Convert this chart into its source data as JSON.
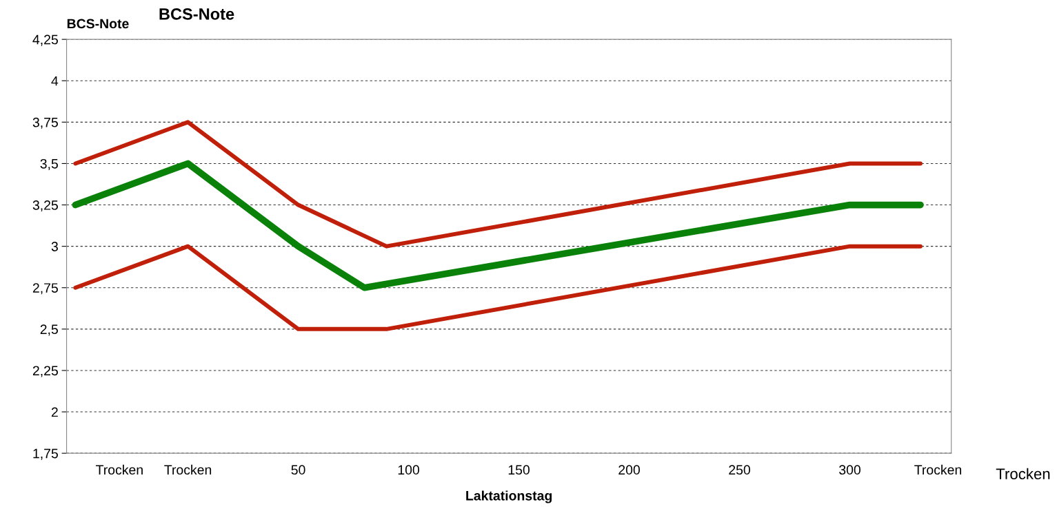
{
  "chart_data": {
    "type": "line",
    "title": "BCS-Note",
    "ylabel": "BCS-Note",
    "xlabel": "Laktationstag",
    "annotations": [
      "Trocken"
    ],
    "series": [
      {
        "color": "#c0200a",
        "x": [
          -51,
          0,
          50,
          90,
          300,
          332
        ],
        "values": [
          3.5,
          3.75,
          3.25,
          3.0,
          3.5,
          3.5
        ]
      },
      {
        "color": "#0a820a",
        "x": [
          -51,
          0,
          50,
          80,
          300,
          332
        ],
        "values": [
          3.25,
          3.5,
          3.0,
          2.75,
          3.25,
          3.25
        ]
      },
      {
        "color": "#c0200a",
        "x": [
          -51,
          0,
          50,
          90,
          300,
          332
        ],
        "values": [
          2.75,
          3.0,
          2.5,
          2.5,
          3.0,
          3.0
        ]
      }
    ],
    "xlim": [
      -55,
      346
    ],
    "xticks": [
      {
        "value": -31,
        "label": "Trocken"
      },
      {
        "value": 0,
        "label": "Trocken"
      },
      50,
      100,
      150,
      200,
      250,
      300,
      {
        "value": 340,
        "label": "Trocken"
      }
    ],
    "ylim": [
      1.75,
      4.25
    ],
    "yticks": [
      {
        "value": 1.75,
        "label": "1,75"
      },
      2,
      {
        "value": 2.25,
        "label": "2,25"
      },
      {
        "value": 2.5,
        "label": "2,5"
      },
      {
        "value": 2.75,
        "label": "2,75"
      },
      3,
      {
        "value": 3.25,
        "label": "3,25"
      },
      {
        "value": 3.5,
        "label": "3,5"
      },
      {
        "value": 3.75,
        "label": "3,75"
      },
      4,
      {
        "value": 4.25,
        "label": "4,25"
      }
    ],
    "grid": "y",
    "legend": false,
    "marker": "none",
    "line_style": "solid"
  }
}
